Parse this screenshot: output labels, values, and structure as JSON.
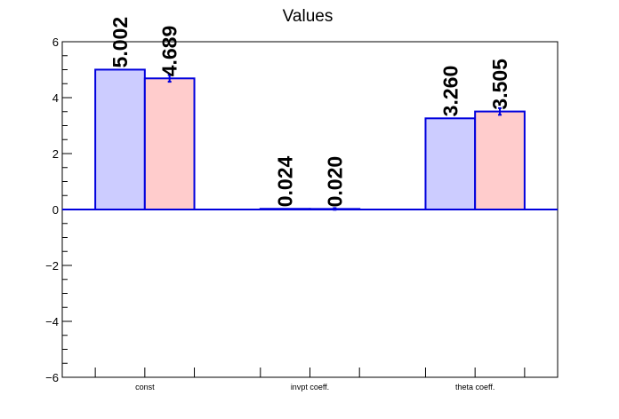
{
  "chart_data": {
    "type": "bar",
    "title": "Values",
    "xlabel": "",
    "ylabel": "",
    "categories": [
      "const",
      "invpt coeff.",
      "theta coeff."
    ],
    "ylim": [
      -6,
      6
    ],
    "yticks": [
      "−6",
      "−4",
      "−2",
      "0",
      "2",
      "4",
      "6"
    ],
    "series": [
      {
        "color": "#ccccff",
        "stroke": "#0000dd",
        "values": [
          5.002,
          0.024,
          3.26
        ],
        "labels": [
          "5.002",
          "0.024",
          "3.260"
        ],
        "errors": [
          0,
          0,
          0
        ]
      },
      {
        "color": "#ffcccc",
        "stroke": "#0000dd",
        "values": [
          4.689,
          0.02,
          3.505
        ],
        "labels": [
          "4.689",
          "0.020",
          "3.505"
        ],
        "errors": [
          0.12,
          0.03,
          0.12
        ]
      }
    ],
    "zero_line": true,
    "grid": false,
    "legend": "none"
  }
}
